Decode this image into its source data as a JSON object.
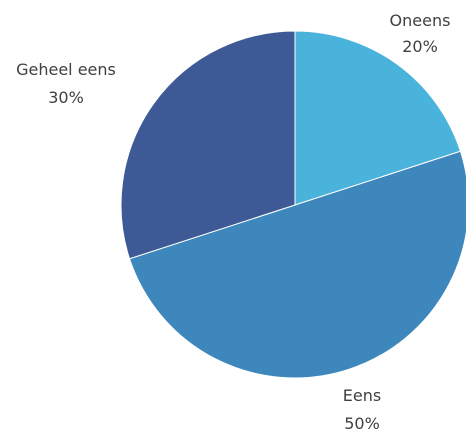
{
  "chart_data": {
    "type": "pie",
    "title": "",
    "slices": [
      {
        "label": "Oneens",
        "value": 20,
        "percent_label": "20%",
        "color": "#4ab3db"
      },
      {
        "label": "Eens",
        "value": 50,
        "percent_label": "50%",
        "color": "#3e87bd"
      },
      {
        "label": "Geheel eens",
        "value": 30,
        "percent_label": "30%",
        "color": "#3d5a97"
      }
    ],
    "start_angle": "12 o'clock",
    "direction": "clockwise",
    "legend": "none",
    "data_labels": "outside, category and percent"
  }
}
